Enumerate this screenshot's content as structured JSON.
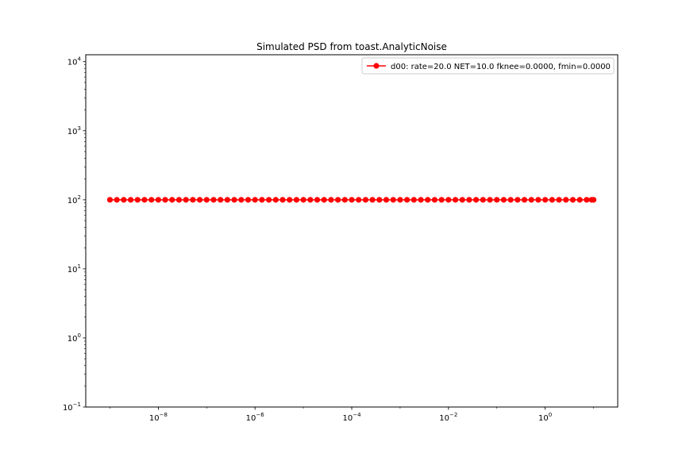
{
  "chart_data": {
    "type": "line",
    "title": "Simulated PSD from toast.AnalyticNoise",
    "xlabel": "",
    "ylabel": "",
    "xscale": "log",
    "yscale": "log",
    "xlim": [
      3.16e-10,
      31.6
    ],
    "ylim": [
      0.1,
      12600
    ],
    "grid": false,
    "legend_position": "top-right",
    "x_ticks": [
      {
        "base": "10",
        "exp": "−8",
        "value": 1e-08
      },
      {
        "base": "10",
        "exp": "−6",
        "value": 1e-06
      },
      {
        "base": "10",
        "exp": "−4",
        "value": 0.0001
      },
      {
        "base": "10",
        "exp": "−2",
        "value": 0.01
      },
      {
        "base": "10",
        "exp": "0",
        "value": 1
      }
    ],
    "y_ticks": [
      {
        "base": "10",
        "exp": "−1",
        "value": 0.1
      },
      {
        "base": "10",
        "exp": "0",
        "value": 1
      },
      {
        "base": "10",
        "exp": "1",
        "value": 10
      },
      {
        "base": "10",
        "exp": "2",
        "value": 100
      },
      {
        "base": "10",
        "exp": "3",
        "value": 1000
      },
      {
        "base": "10",
        "exp": "4",
        "value": 10000
      }
    ],
    "series": [
      {
        "name": "d00: rate=20.0 NET=10.0 fknee=0.0000, fmin=0.0000",
        "color": "#ff0000",
        "marker": "circle",
        "x_range": [
          1e-09,
          10
        ],
        "n_points": 71,
        "extra_x": [
          9.1
        ],
        "y_constant": 100
      }
    ]
  }
}
